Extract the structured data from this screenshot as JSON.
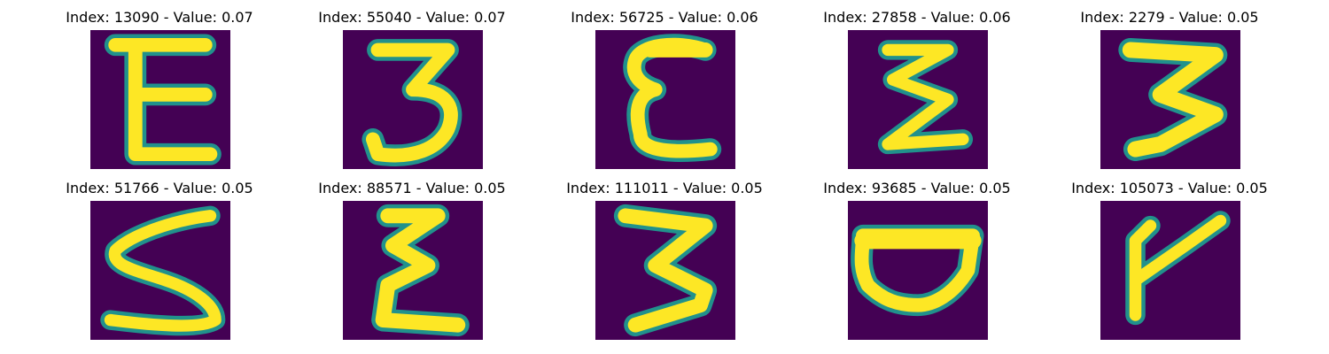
{
  "figure": {
    "background_color": "#440154",
    "stroke_color": "#fde725",
    "edge_color": "#21918c",
    "panels": [
      {
        "title": "Index: 13090 - Value: 0.07",
        "glyph": "E"
      },
      {
        "title": "Index: 55040 - Value: 0.07",
        "glyph": "3"
      },
      {
        "title": "Index: 56725 - Value: 0.06",
        "glyph": "E"
      },
      {
        "title": "Index: 27858 - Value: 0.06",
        "glyph": "Z"
      },
      {
        "title": "Index: 2279 - Value: 0.05",
        "glyph": "3"
      },
      {
        "title": "Index: 51766 - Value: 0.05",
        "glyph": "S"
      },
      {
        "title": "Index: 88571 - Value: 0.05",
        "glyph": "E"
      },
      {
        "title": "Index: 111011 - Value: 0.05",
        "glyph": "3"
      },
      {
        "title": "Index: 93685 - Value: 0.05",
        "glyph": "D"
      },
      {
        "title": "Index: 105073 - Value: 0.05",
        "glyph": "Y"
      }
    ]
  }
}
